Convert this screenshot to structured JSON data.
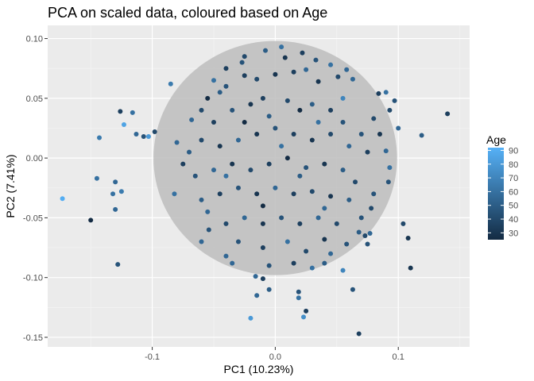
{
  "chart_data": {
    "type": "scatter",
    "title": "PCA on scaled data, coloured based on Age",
    "xlabel": "PC1 (10.23%)",
    "ylabel": "PC2 (7.41%)",
    "xlim": [
      -0.185,
      0.158
    ],
    "ylim": [
      -0.158,
      0.111
    ],
    "x_ticks": [
      -0.1,
      0.0,
      0.1
    ],
    "x_tick_labels": [
      "-0.1",
      "0.0",
      "0.1"
    ],
    "y_ticks": [
      0.1,
      0.05,
      0.0,
      -0.05,
      -0.1,
      -0.15
    ],
    "y_tick_labels": [
      "0.10",
      "0.05",
      "0.00",
      "-0.05",
      "-0.10",
      "-0.15"
    ],
    "grid": true,
    "ellipse": {
      "center": [
        0.0,
        0.0
      ],
      "rx": 0.099,
      "ry": 0.098,
      "fill": "#bdbdbd"
    },
    "legend": {
      "title": "Age",
      "placement": "right",
      "range": [
        25,
        92
      ],
      "ticks": [
        90,
        80,
        70,
        60,
        50,
        40,
        30
      ],
      "low_color": "#132B43",
      "high_color": "#56B1F7"
    },
    "points": [
      {
        "x": -0.173,
        "y": -0.034,
        "age": 90
      },
      {
        "x": -0.15,
        "y": -0.052,
        "age": 25
      },
      {
        "x": -0.143,
        "y": 0.017,
        "age": 65
      },
      {
        "x": -0.145,
        "y": -0.017,
        "age": 60
      },
      {
        "x": -0.126,
        "y": 0.039,
        "age": 35
      },
      {
        "x": -0.123,
        "y": 0.028,
        "age": 85
      },
      {
        "x": -0.116,
        "y": 0.038,
        "age": 60
      },
      {
        "x": -0.113,
        "y": 0.02,
        "age": 55
      },
      {
        "x": -0.107,
        "y": 0.018,
        "age": 45
      },
      {
        "x": -0.103,
        "y": 0.018,
        "age": 80
      },
      {
        "x": -0.098,
        "y": 0.022,
        "age": 40
      },
      {
        "x": -0.13,
        "y": -0.02,
        "age": 55
      },
      {
        "x": -0.132,
        "y": -0.03,
        "age": 60
      },
      {
        "x": -0.125,
        "y": -0.028,
        "age": 65
      },
      {
        "x": -0.13,
        "y": -0.043,
        "age": 55
      },
      {
        "x": -0.128,
        "y": -0.089,
        "age": 45
      },
      {
        "x": 0.14,
        "y": 0.037,
        "age": 35
      },
      {
        "x": 0.119,
        "y": 0.019,
        "age": 50
      },
      {
        "x": 0.1,
        "y": 0.025,
        "age": 55
      },
      {
        "x": 0.097,
        "y": 0.048,
        "age": 45
      },
      {
        "x": 0.09,
        "y": 0.055,
        "age": 60
      },
      {
        "x": 0.084,
        "y": 0.054,
        "age": 35
      },
      {
        "x": 0.093,
        "y": 0.04,
        "age": 40
      },
      {
        "x": 0.104,
        "y": -0.055,
        "age": 40
      },
      {
        "x": 0.108,
        "y": -0.067,
        "age": 30
      },
      {
        "x": 0.11,
        "y": -0.092,
        "age": 30
      },
      {
        "x": 0.077,
        "y": -0.063,
        "age": 55
      },
      {
        "x": 0.075,
        "y": -0.072,
        "age": 45
      },
      {
        "x": 0.073,
        "y": -0.065,
        "age": 40
      },
      {
        "x": 0.055,
        "y": -0.094,
        "age": 70
      },
      {
        "x": 0.063,
        "y": -0.11,
        "age": 45
      },
      {
        "x": 0.068,
        "y": -0.147,
        "age": 35
      },
      {
        "x": 0.025,
        "y": -0.128,
        "age": 35
      },
      {
        "x": 0.023,
        "y": -0.133,
        "age": 75
      },
      {
        "x": 0.019,
        "y": -0.112,
        "age": 45
      },
      {
        "x": -0.02,
        "y": -0.134,
        "age": 80
      },
      {
        "x": -0.015,
        "y": -0.115,
        "age": 55
      },
      {
        "x": 0.019,
        "y": -0.117,
        "age": 60
      },
      {
        "x": -0.01,
        "y": -0.101,
        "age": 35
      },
      {
        "x": -0.005,
        "y": -0.11,
        "age": 50
      },
      {
        "x": 0.005,
        "y": 0.093,
        "age": 60
      },
      {
        "x": 0.008,
        "y": 0.084,
        "age": 30
      },
      {
        "x": -0.027,
        "y": 0.08,
        "age": 45
      },
      {
        "x": -0.085,
        "y": 0.062,
        "age": 65
      },
      {
        "x": -0.068,
        "y": 0.032,
        "age": 55
      },
      {
        "x": -0.08,
        "y": 0.013,
        "age": 55
      },
      {
        "x": -0.082,
        "y": -0.03,
        "age": 60
      },
      {
        "x": -0.055,
        "y": -0.045,
        "age": 55
      },
      {
        "x": -0.054,
        "y": -0.06,
        "age": 45
      },
      {
        "x": -0.06,
        "y": -0.07,
        "age": 55
      },
      {
        "x": -0.04,
        "y": -0.082,
        "age": 55
      },
      {
        "x": -0.035,
        "y": -0.088,
        "age": 55
      },
      {
        "x": -0.016,
        "y": -0.099,
        "age": 55
      },
      {
        "x": 0.04,
        "y": -0.088,
        "age": 50
      },
      {
        "x": 0.045,
        "y": -0.08,
        "age": 55
      },
      {
        "x": 0.058,
        "y": -0.072,
        "age": 45
      },
      {
        "x": 0.068,
        "y": -0.062,
        "age": 50
      },
      {
        "x": 0.07,
        "y": -0.05,
        "age": 45
      },
      {
        "x": 0.063,
        "y": 0.066,
        "age": 55
      },
      {
        "x": 0.051,
        "y": 0.068,
        "age": 40
      },
      {
        "x": 0.058,
        "y": 0.074,
        "age": 55
      },
      {
        "x": 0.08,
        "y": 0.033,
        "age": 40
      },
      {
        "x": 0.085,
        "y": 0.02,
        "age": 30
      },
      {
        "x": 0.09,
        "y": 0.006,
        "age": 55
      },
      {
        "x": 0.093,
        "y": -0.008,
        "age": 60
      },
      {
        "x": 0.092,
        "y": -0.02,
        "age": 45
      },
      {
        "x": 0.08,
        "y": -0.03,
        "age": 45
      },
      {
        "x": 0.078,
        "y": -0.042,
        "age": 40
      },
      {
        "x": -0.05,
        "y": 0.065,
        "age": 60
      },
      {
        "x": -0.04,
        "y": 0.06,
        "age": 45
      },
      {
        "x": -0.025,
        "y": 0.069,
        "age": 35
      },
      {
        "x": -0.015,
        "y": 0.066,
        "age": 40
      },
      {
        "x": 0.0,
        "y": 0.07,
        "age": 30
      },
      {
        "x": 0.015,
        "y": 0.072,
        "age": 35
      },
      {
        "x": 0.025,
        "y": 0.074,
        "age": 55
      },
      {
        "x": 0.035,
        "y": 0.064,
        "age": 30
      },
      {
        "x": -0.06,
        "y": 0.04,
        "age": 40
      },
      {
        "x": -0.05,
        "y": 0.03,
        "age": 35
      },
      {
        "x": -0.035,
        "y": 0.04,
        "age": 45
      },
      {
        "x": -0.02,
        "y": 0.045,
        "age": 30
      },
      {
        "x": -0.01,
        "y": 0.05,
        "age": 35
      },
      {
        "x": 0.01,
        "y": 0.048,
        "age": 40
      },
      {
        "x": 0.02,
        "y": 0.04,
        "age": 25
      },
      {
        "x": 0.03,
        "y": 0.045,
        "age": 50
      },
      {
        "x": 0.045,
        "y": 0.04,
        "age": 35
      },
      {
        "x": 0.055,
        "y": 0.03,
        "age": 45
      },
      {
        "x": -0.07,
        "y": 0.005,
        "age": 50
      },
      {
        "x": -0.06,
        "y": 0.015,
        "age": 40
      },
      {
        "x": -0.045,
        "y": 0.01,
        "age": 30
      },
      {
        "x": -0.03,
        "y": 0.015,
        "age": 55
      },
      {
        "x": -0.015,
        "y": 0.02,
        "age": 30
      },
      {
        "x": 0.0,
        "y": 0.025,
        "age": 45
      },
      {
        "x": 0.015,
        "y": 0.02,
        "age": 35
      },
      {
        "x": 0.03,
        "y": 0.015,
        "age": 30
      },
      {
        "x": 0.045,
        "y": 0.02,
        "age": 40
      },
      {
        "x": 0.06,
        "y": 0.01,
        "age": 55
      },
      {
        "x": 0.07,
        "y": 0.02,
        "age": 45
      },
      {
        "x": -0.065,
        "y": -0.015,
        "age": 45
      },
      {
        "x": -0.05,
        "y": -0.01,
        "age": 55
      },
      {
        "x": -0.035,
        "y": -0.005,
        "age": 30
      },
      {
        "x": -0.02,
        "y": -0.01,
        "age": 40
      },
      {
        "x": -0.005,
        "y": -0.005,
        "age": 35
      },
      {
        "x": 0.01,
        "y": 0.0,
        "age": 25
      },
      {
        "x": 0.025,
        "y": -0.008,
        "age": 45
      },
      {
        "x": 0.04,
        "y": -0.005,
        "age": 30
      },
      {
        "x": 0.055,
        "y": -0.01,
        "age": 50
      },
      {
        "x": 0.065,
        "y": -0.02,
        "age": 40
      },
      {
        "x": -0.06,
        "y": -0.035,
        "age": 50
      },
      {
        "x": -0.045,
        "y": -0.03,
        "age": 35
      },
      {
        "x": -0.03,
        "y": -0.025,
        "age": 45
      },
      {
        "x": -0.015,
        "y": -0.03,
        "age": 30
      },
      {
        "x": 0.0,
        "y": -0.025,
        "age": 55
      },
      {
        "x": 0.015,
        "y": -0.03,
        "age": 35
      },
      {
        "x": 0.03,
        "y": -0.028,
        "age": 40
      },
      {
        "x": 0.045,
        "y": -0.032,
        "age": 30
      },
      {
        "x": 0.06,
        "y": -0.035,
        "age": 50
      },
      {
        "x": -0.04,
        "y": -0.055,
        "age": 40
      },
      {
        "x": -0.025,
        "y": -0.05,
        "age": 55
      },
      {
        "x": -0.01,
        "y": -0.055,
        "age": 30
      },
      {
        "x": 0.005,
        "y": -0.05,
        "age": 45
      },
      {
        "x": 0.02,
        "y": -0.055,
        "age": 35
      },
      {
        "x": 0.035,
        "y": -0.05,
        "age": 55
      },
      {
        "x": 0.05,
        "y": -0.055,
        "age": 40
      },
      {
        "x": -0.03,
        "y": -0.07,
        "age": 45
      },
      {
        "x": -0.01,
        "y": -0.075,
        "age": 35
      },
      {
        "x": 0.01,
        "y": -0.07,
        "age": 60
      },
      {
        "x": 0.025,
        "y": -0.078,
        "age": 40
      },
      {
        "x": 0.04,
        "y": -0.068,
        "age": 30
      },
      {
        "x": -0.005,
        "y": -0.09,
        "age": 45
      },
      {
        "x": 0.015,
        "y": -0.088,
        "age": 35
      },
      {
        "x": 0.03,
        "y": -0.092,
        "age": 60
      },
      {
        "x": -0.025,
        "y": 0.085,
        "age": 40
      },
      {
        "x": -0.008,
        "y": 0.09,
        "age": 50
      },
      {
        "x": 0.022,
        "y": 0.088,
        "age": 35
      },
      {
        "x": 0.033,
        "y": 0.082,
        "age": 45
      },
      {
        "x": -0.04,
        "y": 0.075,
        "age": 35
      },
      {
        "x": 0.045,
        "y": 0.078,
        "age": 60
      },
      {
        "x": -0.005,
        "y": 0.035,
        "age": 50
      },
      {
        "x": 0.005,
        "y": 0.01,
        "age": 60
      },
      {
        "x": -0.025,
        "y": 0.03,
        "age": 25
      },
      {
        "x": 0.035,
        "y": 0.03,
        "age": 60
      },
      {
        "x": -0.04,
        "y": -0.015,
        "age": 60
      },
      {
        "x": 0.02,
        "y": -0.015,
        "age": 50
      },
      {
        "x": -0.01,
        "y": -0.04,
        "age": 25
      },
      {
        "x": 0.04,
        "y": -0.042,
        "age": 55
      },
      {
        "x": 0.055,
        "y": 0.05,
        "age": 70
      },
      {
        "x": -0.055,
        "y": 0.05,
        "age": 25
      },
      {
        "x": -0.045,
        "y": 0.055,
        "age": 50
      },
      {
        "x": 0.075,
        "y": 0.005,
        "age": 35
      },
      {
        "x": -0.075,
        "y": -0.005,
        "age": 35
      }
    ]
  }
}
